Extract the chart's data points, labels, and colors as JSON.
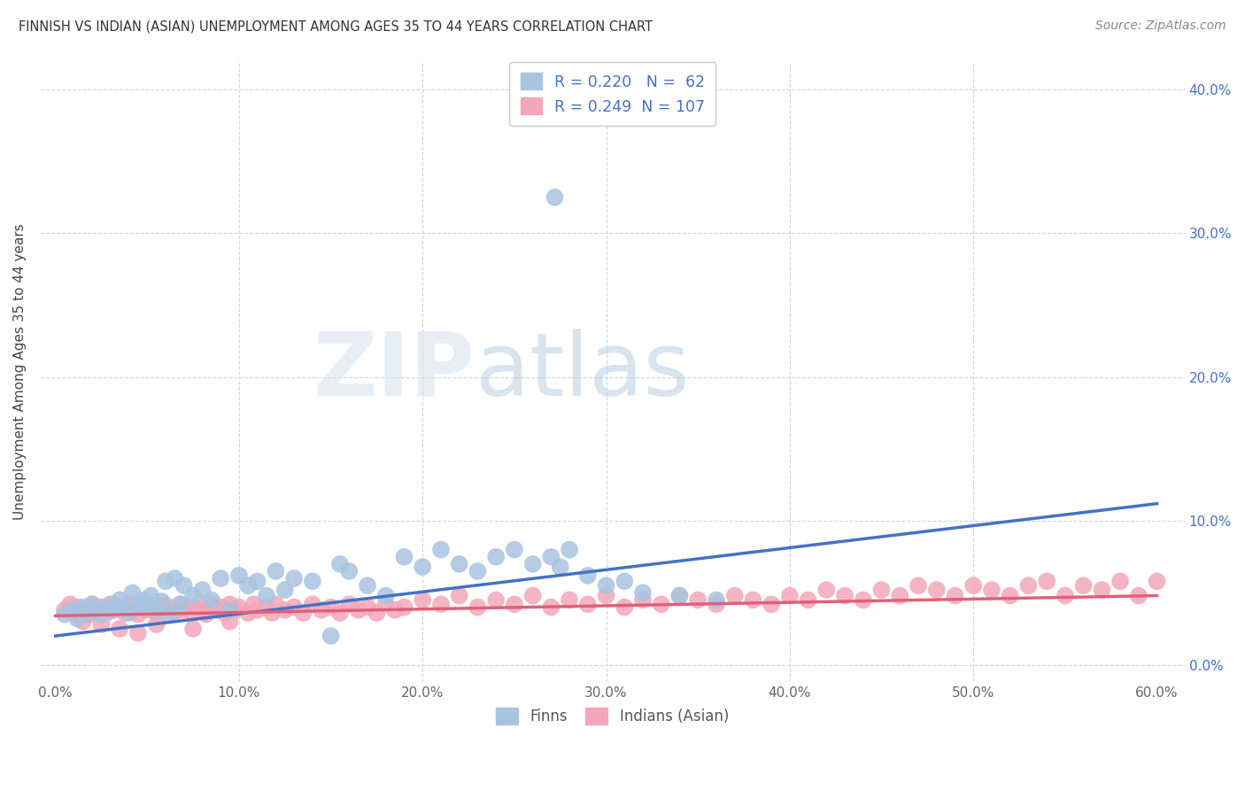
{
  "title": "FINNISH VS INDIAN (ASIAN) UNEMPLOYMENT AMONG AGES 35 TO 44 YEARS CORRELATION CHART",
  "source": "Source: ZipAtlas.com",
  "ylabel": "Unemployment Among Ages 35 to 44 years",
  "xlim": [
    0.0,
    0.6
  ],
  "ylim": [
    0.0,
    0.42
  ],
  "yticks": [
    0.0,
    0.1,
    0.2,
    0.3,
    0.4
  ],
  "xticks": [
    0.0,
    0.1,
    0.2,
    0.3,
    0.4,
    0.5,
    0.6
  ],
  "finn_color": "#a8c4e0",
  "indian_color": "#f4a7b9",
  "finn_line_color": "#4472c4",
  "indian_line_color": "#e0607a",
  "finn_R": 0.22,
  "finn_N": 62,
  "indian_R": 0.249,
  "indian_N": 107,
  "watermark_zip": "ZIP",
  "watermark_atlas": "atlas",
  "finn_trend_x0": 0.0,
  "finn_trend_y0": 0.02,
  "finn_trend_x1": 0.6,
  "finn_trend_y1": 0.112,
  "indian_trend_x0": 0.0,
  "indian_trend_y0": 0.034,
  "indian_trend_x1": 0.6,
  "indian_trend_y1": 0.048,
  "finn_x": [
    0.005,
    0.01,
    0.012,
    0.015,
    0.018,
    0.02,
    0.022,
    0.025,
    0.028,
    0.03,
    0.032,
    0.035,
    0.038,
    0.04,
    0.042,
    0.045,
    0.048,
    0.05,
    0.052,
    0.055,
    0.058,
    0.06,
    0.062,
    0.065,
    0.068,
    0.07,
    0.075,
    0.08,
    0.085,
    0.09,
    0.095,
    0.1,
    0.105,
    0.11,
    0.115,
    0.12,
    0.125,
    0.13,
    0.14,
    0.15,
    0.155,
    0.16,
    0.17,
    0.18,
    0.19,
    0.2,
    0.21,
    0.22,
    0.23,
    0.24,
    0.25,
    0.26,
    0.27,
    0.275,
    0.28,
    0.29,
    0.3,
    0.31,
    0.32,
    0.34,
    0.36,
    0.272
  ],
  "finn_y": [
    0.035,
    0.038,
    0.032,
    0.04,
    0.036,
    0.042,
    0.038,
    0.035,
    0.04,
    0.038,
    0.042,
    0.045,
    0.038,
    0.036,
    0.05,
    0.04,
    0.045,
    0.042,
    0.048,
    0.038,
    0.044,
    0.058,
    0.035,
    0.06,
    0.042,
    0.055,
    0.048,
    0.052,
    0.045,
    0.06,
    0.038,
    0.062,
    0.055,
    0.058,
    0.048,
    0.065,
    0.052,
    0.06,
    0.058,
    0.02,
    0.07,
    0.065,
    0.055,
    0.048,
    0.075,
    0.068,
    0.08,
    0.07,
    0.065,
    0.075,
    0.08,
    0.07,
    0.075,
    0.068,
    0.08,
    0.062,
    0.055,
    0.058,
    0.05,
    0.048,
    0.045,
    0.325
  ],
  "indian_x": [
    0.005,
    0.008,
    0.01,
    0.012,
    0.015,
    0.018,
    0.02,
    0.022,
    0.025,
    0.028,
    0.03,
    0.032,
    0.035,
    0.038,
    0.04,
    0.042,
    0.045,
    0.048,
    0.05,
    0.052,
    0.055,
    0.058,
    0.06,
    0.062,
    0.065,
    0.068,
    0.07,
    0.072,
    0.075,
    0.078,
    0.08,
    0.082,
    0.085,
    0.088,
    0.09,
    0.092,
    0.095,
    0.098,
    0.1,
    0.105,
    0.108,
    0.11,
    0.115,
    0.118,
    0.12,
    0.125,
    0.13,
    0.135,
    0.14,
    0.145,
    0.15,
    0.155,
    0.16,
    0.165,
    0.17,
    0.175,
    0.18,
    0.185,
    0.19,
    0.2,
    0.21,
    0.22,
    0.23,
    0.24,
    0.25,
    0.26,
    0.27,
    0.28,
    0.29,
    0.3,
    0.31,
    0.32,
    0.33,
    0.34,
    0.35,
    0.36,
    0.37,
    0.38,
    0.39,
    0.4,
    0.41,
    0.42,
    0.43,
    0.44,
    0.45,
    0.46,
    0.47,
    0.48,
    0.49,
    0.5,
    0.51,
    0.52,
    0.53,
    0.54,
    0.55,
    0.56,
    0.57,
    0.58,
    0.59,
    0.6,
    0.015,
    0.025,
    0.035,
    0.045,
    0.055,
    0.075,
    0.095
  ],
  "indian_y": [
    0.038,
    0.042,
    0.036,
    0.04,
    0.038,
    0.035,
    0.042,
    0.038,
    0.04,
    0.036,
    0.042,
    0.038,
    0.04,
    0.036,
    0.042,
    0.038,
    0.035,
    0.042,
    0.038,
    0.04,
    0.036,
    0.042,
    0.038,
    0.04,
    0.036,
    0.042,
    0.038,
    0.04,
    0.036,
    0.042,
    0.038,
    0.035,
    0.042,
    0.038,
    0.04,
    0.036,
    0.042,
    0.038,
    0.04,
    0.036,
    0.042,
    0.038,
    0.04,
    0.036,
    0.042,
    0.038,
    0.04,
    0.036,
    0.042,
    0.038,
    0.04,
    0.036,
    0.042,
    0.038,
    0.04,
    0.036,
    0.042,
    0.038,
    0.04,
    0.045,
    0.042,
    0.048,
    0.04,
    0.045,
    0.042,
    0.048,
    0.04,
    0.045,
    0.042,
    0.048,
    0.04,
    0.045,
    0.042,
    0.048,
    0.045,
    0.042,
    0.048,
    0.045,
    0.042,
    0.048,
    0.045,
    0.052,
    0.048,
    0.045,
    0.052,
    0.048,
    0.055,
    0.052,
    0.048,
    0.055,
    0.052,
    0.048,
    0.055,
    0.058,
    0.048,
    0.055,
    0.052,
    0.058,
    0.048,
    0.058,
    0.03,
    0.028,
    0.025,
    0.022,
    0.028,
    0.025,
    0.03
  ]
}
